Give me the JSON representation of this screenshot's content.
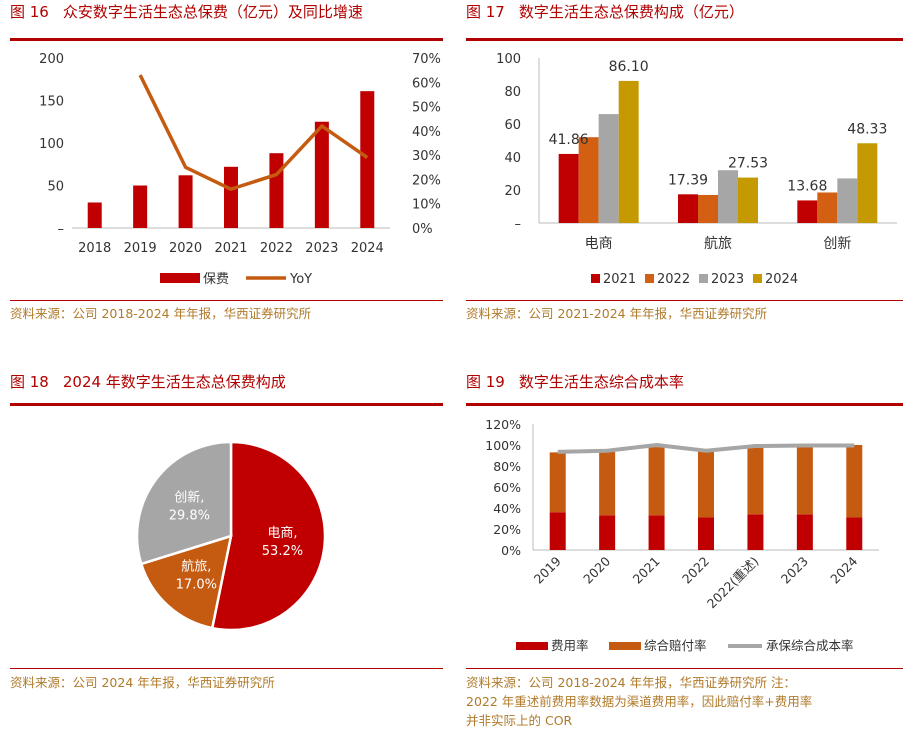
{
  "fig16": {
    "num": "图 16",
    "title": "众安数字生活生态总保费（亿元）及同比增速",
    "source": "资料来源：公司 2018-2024 年年报，华西证券研究所"
  },
  "fig17": {
    "num": "图 17",
    "title": "数字生活生态总保费构成（亿元）",
    "source": "资料来源：公司 2021-2024 年年报，华西证券研究所"
  },
  "fig18": {
    "num": "图 18",
    "title": "2024 年数字生活生态总保费构成",
    "source": "资料来源：公司 2024 年年报，华西证券研究所"
  },
  "fig19": {
    "num": "图 19",
    "title": "数字生活生态综合成本率",
    "source_line1": "资料来源：公司 2018-2024 年年报，华西证券研究所   注：",
    "source_line2": "2022 年重述前费用率数据为渠道费用率，因此赔付率+费用率",
    "source_line3": "并非实际上的 COR"
  },
  "chart_data": [
    {
      "type": "bar",
      "categories": [
        "2018",
        "2019",
        "2020",
        "2021",
        "2022",
        "2023",
        "2024"
      ],
      "series": [
        {
          "name": "保费",
          "values": [
            30,
            50,
            62,
            72,
            88,
            125,
            161
          ],
          "axis": "left",
          "color": "#c00000"
        },
        {
          "name": "YoY",
          "type": "line",
          "values": [
            null,
            63,
            25,
            16,
            22,
            42,
            29
          ],
          "axis": "right",
          "color": "#c55a11"
        }
      ],
      "ylim": [
        0,
        200
      ],
      "y_ticks": [
        "–",
        "50",
        "100",
        "150",
        "200"
      ],
      "y2lim": [
        0,
        70
      ],
      "y2_ticks": [
        "0%",
        "10%",
        "20%",
        "30%",
        "40%",
        "50%",
        "60%",
        "70%"
      ],
      "legend_position": "bottom"
    },
    {
      "type": "bar",
      "categories": [
        "电商",
        "航旅",
        "创新"
      ],
      "series": [
        {
          "name": "2021",
          "values": [
            41.86,
            17.39,
            13.68
          ],
          "color": "#c00000"
        },
        {
          "name": "2022",
          "values": [
            52,
            17,
            18.5
          ],
          "color": "#d35f13"
        },
        {
          "name": "2023",
          "values": [
            66,
            32,
            27
          ],
          "color": "#a6a6a6"
        },
        {
          "name": "2024",
          "values": [
            86.1,
            27.53,
            48.33
          ],
          "color": "#c59a00"
        }
      ],
      "data_labels": [
        {
          "category": "电商",
          "series": "2021",
          "text": "41.86"
        },
        {
          "category": "电商",
          "series": "2024",
          "text": "86.10"
        },
        {
          "category": "航旅",
          "series": "2021",
          "text": "17.39"
        },
        {
          "category": "航旅",
          "series": "2024",
          "text": "27.53"
        },
        {
          "category": "创新",
          "series": "2021",
          "text": "13.68"
        },
        {
          "category": "创新",
          "series": "2024",
          "text": "48.33"
        }
      ],
      "ylim": [
        0,
        100
      ],
      "y_ticks": [
        "–",
        "20",
        "40",
        "60",
        "80",
        "100"
      ],
      "legend_position": "bottom"
    },
    {
      "type": "pie",
      "slices": [
        {
          "label": "电商",
          "value": 53.2,
          "text": "53.2%",
          "color": "#c00000"
        },
        {
          "label": "航旅",
          "value": 17.0,
          "text": "17.0%",
          "color": "#c55a11"
        },
        {
          "label": "创新",
          "value": 29.8,
          "text": "29.8%",
          "color": "#a6a6a6"
        }
      ]
    },
    {
      "type": "bar",
      "stacked": true,
      "categories": [
        "2019",
        "2020",
        "2021",
        "2022",
        "2022(重述)",
        "2023",
        "2024"
      ],
      "series": [
        {
          "name": "费用率",
          "values": [
            36,
            33,
            33,
            31,
            34,
            34,
            31
          ],
          "color": "#c00000"
        },
        {
          "name": "综合赔付率",
          "values": [
            57,
            61,
            65,
            65,
            64,
            64,
            69
          ],
          "color": "#c55a11"
        },
        {
          "name": "承保综合成本率",
          "type": "line",
          "values": [
            93.5,
            94.5,
            100,
            94.5,
            99,
            99.5,
            99.5
          ],
          "color": "#a6a6a6"
        }
      ],
      "ylim": [
        0,
        120
      ],
      "y_ticks": [
        "0%",
        "20%",
        "40%",
        "60%",
        "80%",
        "100%",
        "120%"
      ],
      "legend_position": "bottom"
    }
  ]
}
